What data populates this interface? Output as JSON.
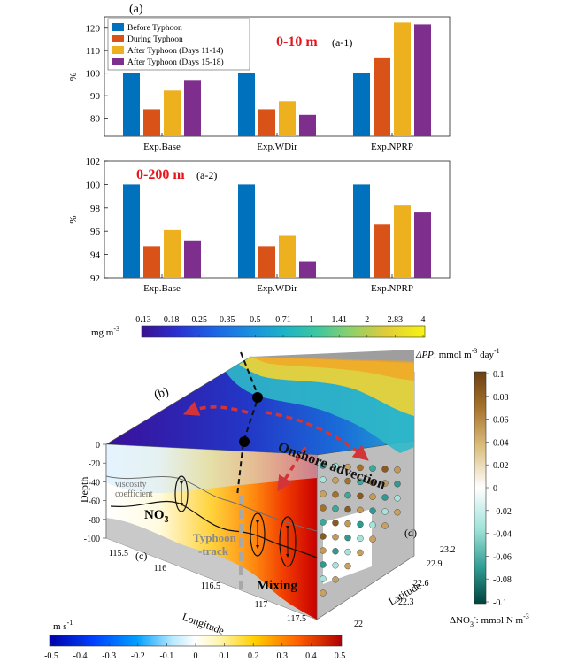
{
  "chart_data": [
    {
      "type": "bar",
      "panel": "(a)",
      "sub_label": "(a-1)",
      "range_label": "0-10 m",
      "ylabel": "%",
      "ylim": [
        72,
        125
      ],
      "yticks": [
        80,
        90,
        100,
        110,
        120
      ],
      "categories": [
        "Exp.Base",
        "Exp.WDir",
        "Exp.NPRP"
      ],
      "series": [
        {
          "name": "Before Typhoon",
          "color": "#0072bd",
          "values": [
            100,
            100,
            100
          ]
        },
        {
          "name": "During Typhoon",
          "color": "#d95319",
          "values": [
            84,
            84,
            107
          ]
        },
        {
          "name": "After Typhoon (Days 11-14)",
          "color": "#edb120",
          "values": [
            92.3,
            87.6,
            122.5
          ]
        },
        {
          "name": "After Typhoon (Days 15-18)",
          "color": "#7e2f8e",
          "values": [
            97,
            81.5,
            121.7
          ]
        }
      ],
      "legend_position": "top-left"
    },
    {
      "type": "bar",
      "sub_label": "(a-2)",
      "range_label": "0-200 m",
      "ylabel": "%",
      "ylim": [
        92,
        102
      ],
      "yticks": [
        92,
        94,
        96,
        98,
        100,
        102
      ],
      "categories": [
        "Exp.Base",
        "Exp.WDir",
        "Exp.NPRP"
      ],
      "series": [
        {
          "name": "Before Typhoon",
          "color": "#0072bd",
          "values": [
            100,
            100,
            100
          ]
        },
        {
          "name": "During Typhoon",
          "color": "#d95319",
          "values": [
            94.7,
            94.7,
            96.6
          ]
        },
        {
          "name": "After Typhoon (Days 11-14)",
          "color": "#edb120",
          "values": [
            96.1,
            95.6,
            98.2
          ]
        },
        {
          "name": "After Typhoon (Days 15-18)",
          "color": "#7e2f8e",
          "values": [
            95.2,
            93.4,
            97.6
          ]
        }
      ]
    }
  ],
  "chl_colorbar": {
    "unit": "mg m",
    "unit_exp": "-3",
    "ticks": [
      "0.13",
      "0.18",
      "0.25",
      "0.35",
      "0.5",
      "0.71",
      "1",
      "1.41",
      "2",
      "2.83",
      "4"
    ]
  },
  "velocity_colorbar": {
    "unit": "m s",
    "unit_exp": "-1",
    "ticks": [
      "-0.5",
      "-0.4",
      "-0.3",
      "-0.2",
      "-0.1",
      "0",
      "0.1",
      "0.2",
      "0.3",
      "0.4",
      "0.5"
    ]
  },
  "pp_colorbar": {
    "title_prefix": "ΔPP",
    "title_suffix": ": mmol m",
    "title_exp1": "-3",
    "title_mid": " day",
    "title_exp2": "-1",
    "ticks": [
      "0.1",
      "0.08",
      "0.06",
      "0.04",
      "0.02",
      "0",
      "-0.02",
      "-0.04",
      "-0.06",
      "-0.08",
      "-0.1"
    ],
    "bottom_label": "ΔNO",
    "bottom_sub": "3",
    "bottom_sup": "-",
    "bottom_unit": ": mmol N m",
    "bottom_exp": "-3"
  },
  "panel_b": {
    "label": "(b)",
    "onshore": "Onshore advection"
  },
  "panel_c": {
    "label": "(c)",
    "depth_label": "Depth",
    "depth_ticks": [
      "0",
      "-20",
      "-40",
      "-60",
      "-80",
      "-100"
    ],
    "longitude_label": "Longitude",
    "longitude_ticks": [
      "115.5",
      "116",
      "116.5",
      "117",
      "117.5"
    ],
    "viscosity_1": "viscosity",
    "viscosity_2": "coefficient",
    "no3": "NO",
    "no3_sub": "3",
    "typhoon_1": "Typhoon",
    "typhoon_2": "-track",
    "mixing": "Mixing"
  },
  "panel_d": {
    "label": "(d)",
    "latitude_label": "Latitude",
    "latitude_ticks": [
      "23.2",
      "22.9",
      "22.6",
      "22.3",
      "22"
    ]
  }
}
